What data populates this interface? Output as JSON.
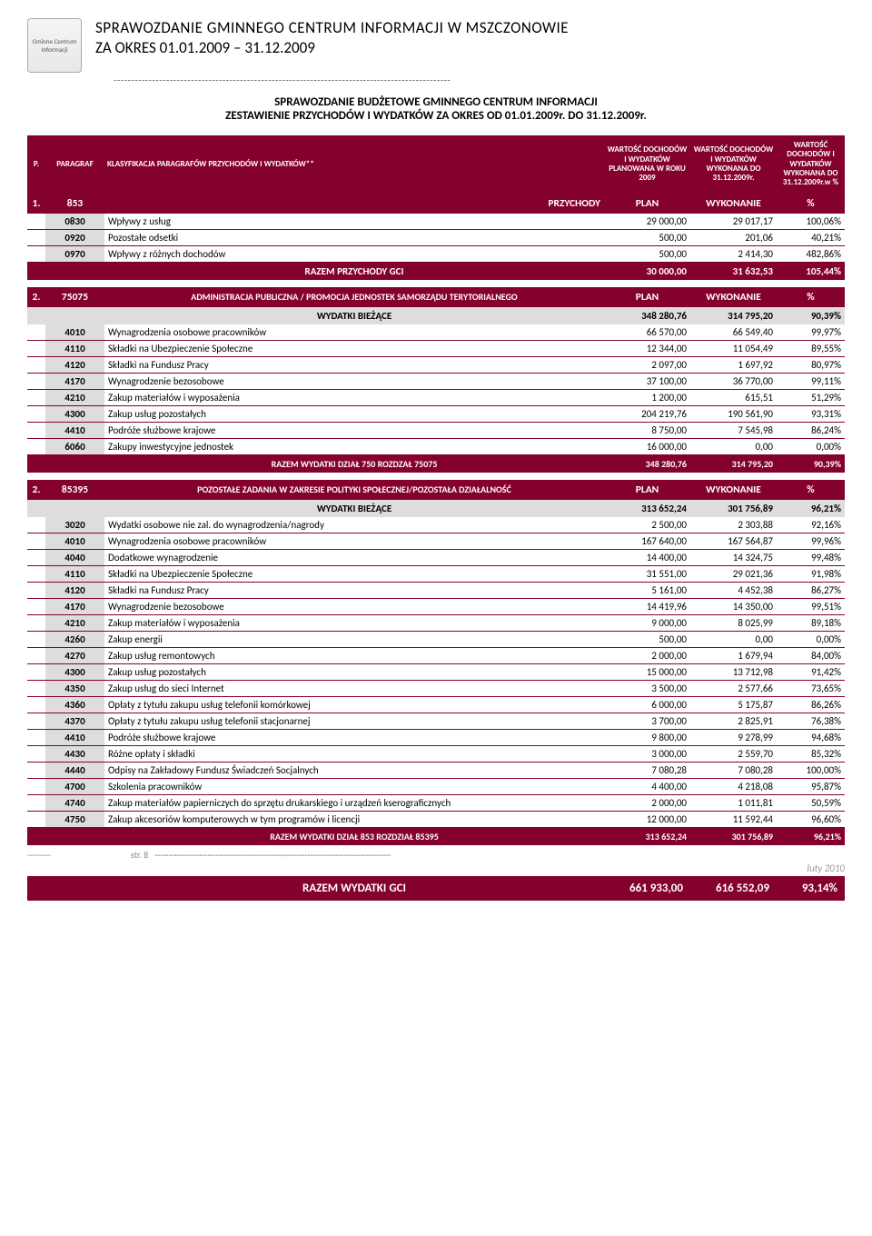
{
  "colors": {
    "darkred": "#84002e",
    "gray_row": "#dddddd",
    "text": "#000000",
    "white": "#ffffff",
    "dash": "#666666"
  },
  "header": {
    "title_line1": "SPRAWOZDANIE GMINNEGO CENTRUM INFORMACJI W MSZCZONOWIE",
    "title_line2": "ZA OKRES 01.01.2009 – 31.12.2009",
    "logo_text": "Gminne Centrum Informacji"
  },
  "report": {
    "title": "SPRAWOZDANIE BUDŻETOWE GMINNEGO CENTRUM INFORMACJI",
    "subtitle": "ZESTAWIENIE PRZYCHODÓW I WYDATKÓW ZA OKRES OD 01.01.2009r. DO 31.12.2009r."
  },
  "columns": {
    "lp": "P.",
    "paragraf": "PARAGRAF",
    "klasyf": "KLASYFIKACJA PARAGRAFÓW PRZYCHODÓW I WYDATKÓW**",
    "plan": "WARTOŚĆ DOCHODÓW I WYDATKÓW PLANOWANA W ROKU 2009",
    "wyk": "WARTOŚĆ DOCHODÓW I WYDATKÓW WYKONANA DO 31.12.2009r.",
    "pct": "WARTOŚĆ DOCHODÓW I WYDATKÓW WYKONANA DO 31.12.2009r.w %"
  },
  "s1": {
    "lp": "1.",
    "code": "853",
    "name": "PRZYCHODY",
    "plan_lbl": "PLAN",
    "wyk_lbl": "WYKONANIE",
    "pct_lbl": "%",
    "rows": [
      {
        "c": "0830",
        "d": "Wpływy z usług",
        "p": "29 000,00",
        "w": "29 017,17",
        "x": "100,06%"
      },
      {
        "c": "0920",
        "d": "Pozostałe odsetki",
        "p": "500,00",
        "w": "201,06",
        "x": "40,21%"
      },
      {
        "c": "0970",
        "d": "Wpływy z różnych dochodów",
        "p": "500,00",
        "w": "2 414,30",
        "x": "482,86%"
      }
    ],
    "total": {
      "label": "RAZEM PRZYCHODY GCI",
      "p": "30 000,00",
      "w": "31 632,53",
      "x": "105,44%"
    }
  },
  "s2": {
    "lp": "2.",
    "code": "75075",
    "name": "ADMINISTRACJA PUBLICZNA / PROMOCJA JEDNOSTEK SAMORZĄDU TERYTORIALNEGO",
    "plan_lbl": "PLAN",
    "wyk_lbl": "WYKONANIE",
    "pct_lbl": "%",
    "sub": {
      "label": "WYDATKI BIEŻĄCE",
      "p": "348 280,76",
      "w": "314 795,20",
      "x": "90,39%"
    },
    "rows": [
      {
        "c": "4010",
        "d": "Wynagrodzenia osobowe pracowników",
        "p": "66 570,00",
        "w": "66 549,40",
        "x": "99,97%"
      },
      {
        "c": "4110",
        "d": "Składki na Ubezpieczenie Społeczne",
        "p": "12 344,00",
        "w": "11 054,49",
        "x": "89,55%"
      },
      {
        "c": "4120",
        "d": "Składki na Fundusz Pracy",
        "p": "2 097,00",
        "w": "1 697,92",
        "x": "80,97%"
      },
      {
        "c": "4170",
        "d": "Wynagrodzenie bezosobowe",
        "p": "37 100,00",
        "w": "36 770,00",
        "x": "99,11%"
      },
      {
        "c": "4210",
        "d": "Zakup materiałów i wyposażenia",
        "p": "1 200,00",
        "w": "615,51",
        "x": "51,29%"
      },
      {
        "c": "4300",
        "d": "Zakup usług pozostałych",
        "p": "204 219,76",
        "w": "190 561,90",
        "x": "93,31%"
      },
      {
        "c": "4410",
        "d": "Podróże służbowe krajowe",
        "p": "8 750,00",
        "w": "7 545,98",
        "x": "86,24%"
      },
      {
        "c": "6060",
        "d": "Zakupy inwestycyjne jednostek",
        "p": "16 000,00",
        "w": "0,00",
        "x": "0,00%"
      }
    ],
    "total": {
      "label": "RAZEM WYDATKI DZIAŁ 750 ROZDZAŁ 75075",
      "p": "348 280,76",
      "w": "314 795,20",
      "x": "90,39%"
    }
  },
  "s3": {
    "lp": "2.",
    "code": "85395",
    "name": "POZOSTAŁE ZADANIA W ZAKRESIE POLITYKI SPOŁECZNEJ/POZOSTAŁA DZIAŁALNOŚĆ",
    "plan_lbl": "PLAN",
    "wyk_lbl": "WYKONANIE",
    "pct_lbl": "%",
    "sub": {
      "label": "WYDATKI BIEŻĄCE",
      "p": "313 652,24",
      "w": "301 756,89",
      "x": "96,21%"
    },
    "rows": [
      {
        "c": "3020",
        "d": "Wydatki osobowe nie zal. do wynagrodzenia/nagrody",
        "p": "2 500,00",
        "w": "2 303,88",
        "x": "92,16%"
      },
      {
        "c": "4010",
        "d": "Wynagrodzenia osobowe pracowników",
        "p": "167 640,00",
        "w": "167 564,87",
        "x": "99,96%"
      },
      {
        "c": "4040",
        "d": "Dodatkowe wynagrodzenie",
        "p": "14 400,00",
        "w": "14 324,75",
        "x": "99,48%"
      },
      {
        "c": "4110",
        "d": "Składki na Ubezpieczenie Społeczne",
        "p": "31 551,00",
        "w": "29 021,36",
        "x": "91,98%"
      },
      {
        "c": "4120",
        "d": "Składki na Fundusz Pracy",
        "p": "5 161,00",
        "w": "4 452,38",
        "x": "86,27%"
      },
      {
        "c": "4170",
        "d": "Wynagrodzenie bezosobowe",
        "p": "14 419,96",
        "w": "14 350,00",
        "x": "99,51%"
      },
      {
        "c": "4210",
        "d": "Zakup materiałów i wyposażenia",
        "p": "9 000,00",
        "w": "8 025,99",
        "x": "89,18%"
      },
      {
        "c": "4260",
        "d": "Zakup energii",
        "p": "500,00",
        "w": "0,00",
        "x": "0,00%"
      },
      {
        "c": "4270",
        "d": "Zakup usług remontowych",
        "p": "2 000,00",
        "w": "1 679,94",
        "x": "84,00%"
      },
      {
        "c": "4300",
        "d": "Zakup usług pozostałych",
        "p": "15 000,00",
        "w": "13 712,98",
        "x": "91,42%"
      },
      {
        "c": "4350",
        "d": "Zakup usług do sieci Internet",
        "p": "3 500,00",
        "w": "2 577,66",
        "x": "73,65%"
      },
      {
        "c": "4360",
        "d": "Opłaty z tytułu zakupu usług telefonii komórkowej",
        "p": "6 000,00",
        "w": "5 175,87",
        "x": "86,26%"
      },
      {
        "c": "4370",
        "d": "Opłaty z tytułu zakupu usług telefonii stacjonarnej",
        "p": "3 700,00",
        "w": "2 825,91",
        "x": "76,38%"
      },
      {
        "c": "4410",
        "d": "Podróże służbowe krajowe",
        "p": "9 800,00",
        "w": "9 278,99",
        "x": "94,68%"
      },
      {
        "c": "4430",
        "d": "Różne opłaty i składki",
        "p": "3 000,00",
        "w": "2 559,70",
        "x": "85,32%"
      },
      {
        "c": "4440",
        "d": "Odpisy na Zakładowy Fundusz Świadczeń Socjalnych",
        "p": "7 080,28",
        "w": "7 080,28",
        "x": "100,00%"
      },
      {
        "c": "4700",
        "d": "Szkolenia pracowników",
        "p": "4 400,00",
        "w": "4 218,08",
        "x": "95,87%"
      },
      {
        "c": "4740",
        "d": "Zakup materiałów papierniczych do sprzętu drukarskiego i urządzeń kserograficznych",
        "p": "2 000,00",
        "w": "1 011,81",
        "x": "50,59%"
      },
      {
        "c": "4750",
        "d": "Zakup akcesoriów komputerowych w tym programów i licencji",
        "p": "12 000,00",
        "w": "11 592,44",
        "x": "96,60%"
      }
    ],
    "total": {
      "label": "RAZEM WYDATKI DZIAŁ 853 ROZDZIAŁ 85395",
      "p": "313 652,24",
      "w": "301 756,89",
      "x": "96,21%"
    }
  },
  "grand": {
    "label": "RAZEM WYDATKI GCI",
    "p": "661 933,00",
    "w": "616 552,09",
    "x": "93,14%"
  },
  "footer": {
    "page": "str. 8",
    "date": "luty 2010",
    "dashes_prefix": "----------"
  }
}
